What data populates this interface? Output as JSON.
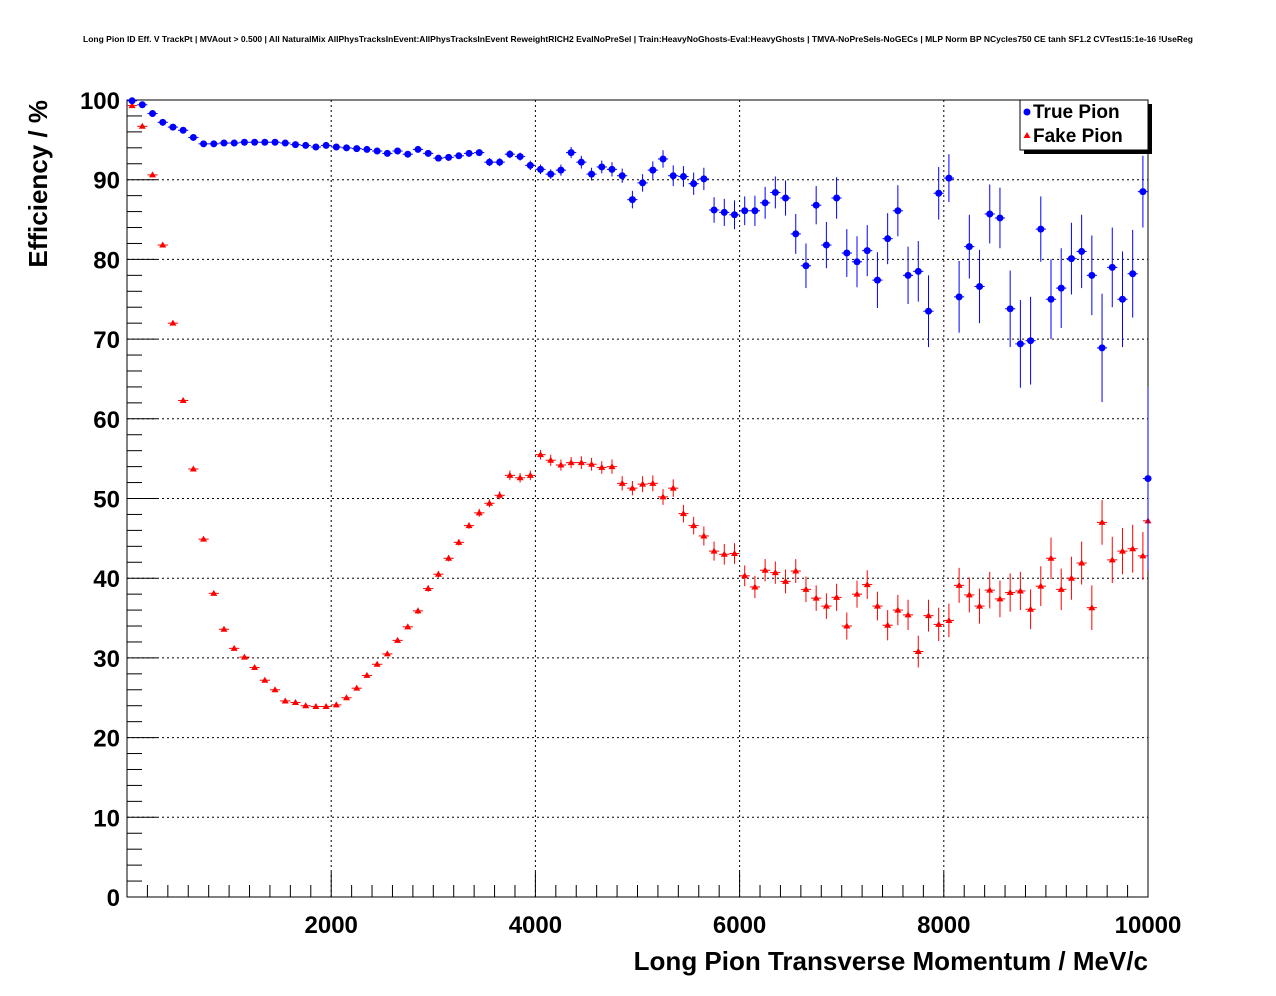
{
  "chart_data": {
    "type": "scatter",
    "title": "Long Pion ID Eff. V TrackPt | MVAout > 0.500 | All NaturalMix AllPhysTracksInEvent:AllPhysTracksInEvent ReweightRICH2 EvalNoPreSel | Train:HeavyNoGhosts-Eval:HeavyGhosts | TMVA-NoPreSels-NoGECs | MLP Norm BP NCycles750 CE tanh SF1.2 CVTest15:1e-16 !UseReg",
    "xlabel": "Long Pion Transverse Momentum / MeV/c",
    "ylabel": "Efficiency / %",
    "xlim": [
      0,
      10000
    ],
    "ylim": [
      0,
      100
    ],
    "xticks": [
      2000,
      4000,
      6000,
      8000,
      10000
    ],
    "yticks": [
      0,
      10,
      20,
      30,
      40,
      50,
      60,
      70,
      80,
      90,
      100
    ],
    "grid": true,
    "legend_position": "top-right",
    "series": [
      {
        "name": "True Pion",
        "color": "#0000ff",
        "marker": "circle",
        "x": [
          50,
          150,
          250,
          350,
          450,
          550,
          650,
          750,
          850,
          950,
          1050,
          1150,
          1250,
          1350,
          1450,
          1550,
          1650,
          1750,
          1850,
          1950,
          2050,
          2150,
          2250,
          2350,
          2450,
          2550,
          2650,
          2750,
          2850,
          2950,
          3050,
          3150,
          3250,
          3350,
          3450,
          3550,
          3650,
          3750,
          3850,
          3950,
          4050,
          4150,
          4250,
          4350,
          4450,
          4550,
          4650,
          4750,
          4850,
          4950,
          5050,
          5150,
          5250,
          5350,
          5450,
          5550,
          5650,
          5750,
          5850,
          5950,
          6050,
          6150,
          6250,
          6350,
          6450,
          6550,
          6650,
          6750,
          6850,
          6950,
          7050,
          7150,
          7250,
          7350,
          7450,
          7550,
          7650,
          7750,
          7850,
          7950,
          8050,
          8150,
          8250,
          8350,
          8450,
          8550,
          8650,
          8750,
          8850,
          8950,
          9050,
          9150,
          9250,
          9350,
          9450,
          9550,
          9650,
          9750,
          9850,
          9950
        ],
        "y": [
          99.9,
          99.4,
          98.3,
          97.2,
          96.6,
          96.2,
          95.3,
          94.5,
          94.5,
          94.6,
          94.6,
          94.7,
          94.7,
          94.7,
          94.7,
          94.6,
          94.4,
          94.3,
          94.1,
          94.3,
          94.1,
          94.0,
          93.9,
          93.8,
          93.6,
          93.3,
          93.6,
          93.2,
          93.8,
          93.3,
          92.7,
          92.8,
          93.0,
          93.3,
          93.4,
          92.2,
          92.2,
          93.2,
          92.9,
          91.8,
          91.3,
          90.7,
          91.2,
          93.4,
          92.2,
          90.7,
          91.6,
          91.3,
          90.5,
          87.5,
          89.6,
          91.2,
          92.6,
          90.5,
          90.4,
          89.5,
          90.1,
          86.2,
          85.9,
          85.6,
          86.1,
          86.1,
          87.1,
          88.4,
          87.7,
          83.2,
          79.2,
          86.8,
          81.8,
          87.7,
          80.8,
          79.7,
          81.1,
          77.4,
          82.6,
          86.1,
          78.0,
          78.5,
          73.5,
          88.3,
          90.2,
          75.3,
          81.6,
          76.6,
          85.7,
          85.2,
          73.8,
          69.4,
          69.8,
          83.8,
          75.0,
          76.4,
          80.1,
          81.0,
          78.0,
          68.9,
          79.0,
          75.0,
          78.2,
          88.5
        ],
        "yerr": [
          0.1,
          0.2,
          0.3,
          0.3,
          0.3,
          0.3,
          0.3,
          0.3,
          0.3,
          0.3,
          0.3,
          0.3,
          0.3,
          0.3,
          0.3,
          0.3,
          0.3,
          0.3,
          0.3,
          0.3,
          0.3,
          0.3,
          0.3,
          0.3,
          0.3,
          0.3,
          0.3,
          0.3,
          0.3,
          0.4,
          0.4,
          0.4,
          0.4,
          0.4,
          0.4,
          0.5,
          0.5,
          0.5,
          0.5,
          0.6,
          0.6,
          0.6,
          0.7,
          0.7,
          0.8,
          0.8,
          0.8,
          0.9,
          0.9,
          1.1,
          1.1,
          1.1,
          1.1,
          1.3,
          1.3,
          1.4,
          1.4,
          1.6,
          1.7,
          1.8,
          1.8,
          1.9,
          2.0,
          2.0,
          2.2,
          2.5,
          2.8,
          2.4,
          2.9,
          2.6,
          3.0,
          3.2,
          3.2,
          3.5,
          3.2,
          3.2,
          3.6,
          3.8,
          4.5,
          3.3,
          3.0,
          4.5,
          4.0,
          4.6,
          3.7,
          3.8,
          4.8,
          5.5,
          5.5,
          4.1,
          5.0,
          5.0,
          4.5,
          4.6,
          5.0,
          6.8,
          5.0,
          6.0,
          5.5,
          4.5
        ],
        "x_extra": [
          10000
        ],
        "y_extra": [
          52.5
        ],
        "yerr_extra": [
          11.5
        ]
      },
      {
        "name": "Fake Pion",
        "color": "#ff0000",
        "marker": "triangle",
        "x": [
          50,
          150,
          250,
          350,
          450,
          550,
          650,
          750,
          850,
          950,
          1050,
          1150,
          1250,
          1350,
          1450,
          1550,
          1650,
          1750,
          1850,
          1950,
          2050,
          2150,
          2250,
          2350,
          2450,
          2550,
          2650,
          2750,
          2850,
          2950,
          3050,
          3150,
          3250,
          3350,
          3450,
          3550,
          3650,
          3750,
          3850,
          3950,
          4050,
          4150,
          4250,
          4350,
          4450,
          4550,
          4650,
          4750,
          4850,
          4950,
          5050,
          5150,
          5250,
          5350,
          5450,
          5550,
          5650,
          5750,
          5850,
          5950,
          6050,
          6150,
          6250,
          6350,
          6450,
          6550,
          6650,
          6750,
          6850,
          6950,
          7050,
          7150,
          7250,
          7350,
          7450,
          7550,
          7650,
          7750,
          7850,
          7950,
          8050,
          8150,
          8250,
          8350,
          8450,
          8550,
          8650,
          8750,
          8850,
          8950,
          9050,
          9150,
          9250,
          9350,
          9450,
          9550,
          9650,
          9750,
          9850,
          9950
        ],
        "y": [
          99.3,
          96.7,
          90.6,
          81.8,
          72.0,
          62.3,
          53.7,
          44.9,
          38.1,
          33.6,
          31.2,
          30.1,
          28.8,
          27.2,
          26.0,
          24.6,
          24.4,
          24.0,
          23.9,
          23.9,
          24.1,
          25.0,
          26.2,
          27.8,
          29.2,
          30.5,
          32.2,
          33.9,
          35.9,
          38.7,
          40.5,
          42.5,
          44.5,
          46.6,
          48.2,
          49.4,
          50.4,
          52.9,
          52.6,
          52.9,
          55.5,
          54.8,
          54.2,
          54.5,
          54.5,
          54.3,
          53.9,
          54.0,
          51.9,
          51.3,
          51.8,
          51.9,
          50.2,
          51.3,
          48.1,
          46.6,
          45.3,
          43.4,
          43.0,
          43.1,
          40.3,
          38.9,
          41.0,
          40.7,
          39.6,
          40.9,
          38.6,
          37.5,
          36.5,
          37.6,
          34.0,
          38.0,
          39.2,
          36.5,
          34.1,
          36.0,
          35.4,
          30.8,
          35.3,
          34.2,
          34.7,
          39.1,
          37.9,
          36.5,
          38.5,
          37.4,
          38.2,
          38.4,
          36.1,
          39.0,
          42.5,
          38.6,
          40.0,
          41.9,
          36.3,
          47.0,
          42.3,
          43.4,
          43.7,
          42.8
        ],
        "yerr": [
          0.2,
          0.2,
          0.2,
          0.2,
          0.2,
          0.2,
          0.2,
          0.2,
          0.2,
          0.2,
          0.2,
          0.2,
          0.2,
          0.2,
          0.2,
          0.2,
          0.2,
          0.2,
          0.2,
          0.2,
          0.3,
          0.3,
          0.3,
          0.3,
          0.3,
          0.3,
          0.3,
          0.3,
          0.4,
          0.4,
          0.4,
          0.4,
          0.4,
          0.4,
          0.5,
          0.5,
          0.5,
          0.6,
          0.6,
          0.6,
          0.6,
          0.7,
          0.7,
          0.7,
          0.8,
          0.8,
          0.8,
          0.9,
          0.9,
          0.9,
          1.0,
          1.0,
          1.0,
          1.1,
          1.1,
          1.1,
          1.2,
          1.2,
          1.3,
          1.3,
          1.3,
          1.4,
          1.4,
          1.4,
          1.5,
          1.5,
          1.6,
          1.6,
          1.6,
          1.7,
          1.7,
          1.7,
          1.8,
          1.8,
          1.9,
          1.9,
          1.9,
          2.0,
          2.0,
          2.1,
          2.1,
          2.2,
          2.2,
          2.2,
          2.3,
          2.3,
          2.4,
          2.4,
          2.5,
          2.5,
          2.6,
          2.6,
          2.7,
          2.7,
          2.8,
          2.8,
          2.9,
          2.9,
          3.0,
          3.0
        ],
        "x_extra": [
          10000
        ],
        "y_extra": [
          47.2
        ],
        "yerr_extra": [
          5.5
        ]
      }
    ]
  }
}
